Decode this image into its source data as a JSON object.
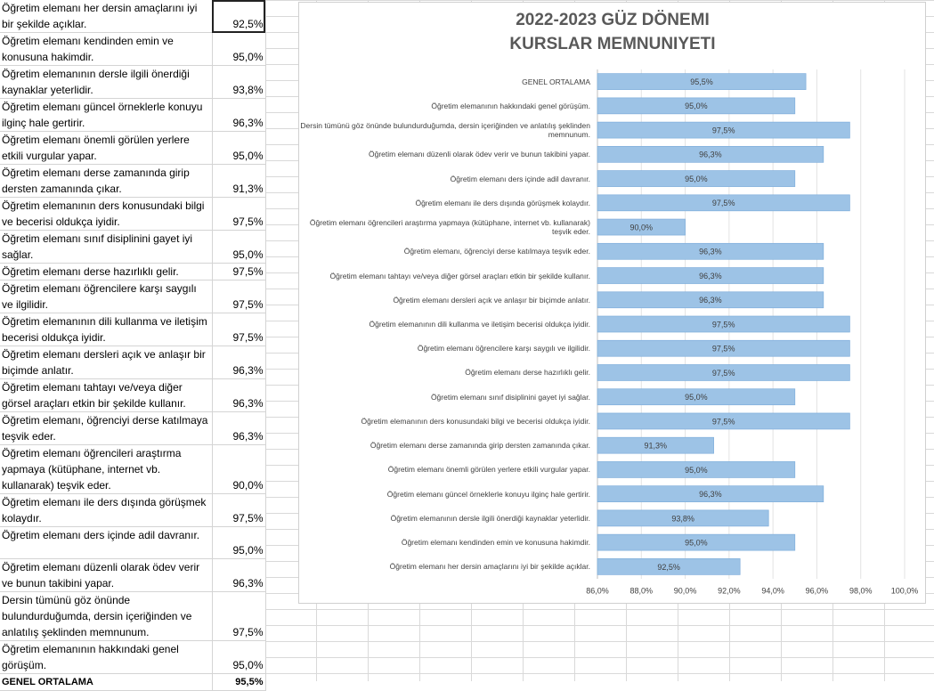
{
  "table": {
    "rows": [
      [
        "Öğretim elemanı her dersin amaçlarını iyi bir şekilde açıklar.",
        "92,5%"
      ],
      [
        "Öğretim elemanı kendinden emin ve konusuna hakimdir.",
        "95,0%"
      ],
      [
        "Öğretim elemanının dersle ilgili önerdiği kaynaklar yeterlidir.",
        "93,8%"
      ],
      [
        "Öğretim elemanı güncel örneklerle konuyu ilginç hale gertirir.",
        "96,3%"
      ],
      [
        "Öğretim elemanı önemli görülen yerlere etkili vurgular yapar.",
        "95,0%"
      ],
      [
        "Öğretim elemanı derse zamanında girip dersten zamanında çıkar.",
        "91,3%"
      ],
      [
        "Öğretim elemanının ders konusundaki bilgi ve becerisi oldukça iyidir.",
        "97,5%"
      ],
      [
        "Öğretim elemanı sınıf disiplinini gayet iyi sağlar.",
        "95,0%"
      ],
      [
        "Öğretim elemanı derse hazırlıklı gelir.",
        "97,5%"
      ],
      [
        "Öğretim elemanı öğrencilere karşı saygılı ve ilgilidir.",
        "97,5%"
      ],
      [
        "Öğretim elemanının dili kullanma ve iletişim becerisi oldukça iyidir.",
        "97,5%"
      ],
      [
        "Öğretim elemanı dersleri açık ve anlaşır bir biçimde anlatır.",
        "96,3%"
      ],
      [
        "Öğretim elemanı tahtayı ve/veya diğer görsel araçları etkin bir şekilde kullanır.",
        "96,3%"
      ],
      [
        "Öğretim elemanı, öğrenciyi derse katılmaya teşvik eder.",
        "96,3%"
      ],
      [
        "Öğretim elemanı öğrencileri araştırma yapmaya (kütüphane, internet vb. kullanarak) teşvik eder.",
        "90,0%"
      ],
      [
        "Öğretim elemanı ile ders dışında görüşmek kolaydır.",
        "97,5%"
      ],
      [
        "Öğretim elemanı ders içinde adil davranır.",
        "95,0%"
      ],
      [
        "Öğretim elemanı düzenli olarak ödev verir ve bunun takibini yapar.",
        "96,3%"
      ],
      [
        "Dersin tümünü göz önünde bulundurduğumda, dersin içeriğinden ve anlatılış şeklinden memnunum.",
        "97,5%"
      ],
      [
        "Öğretim elemanının hakkındaki genel görüşüm.",
        "95,0%"
      ],
      [
        "GENEL ORTALAMA",
        "95,5%"
      ]
    ]
  },
  "chart_data": {
    "type": "hbar",
    "title": [
      "2022-2023 GÜZ DÖNEMI",
      "KURSLAR MEMNUNIYETI"
    ],
    "categories": [
      "GENEL ORTALAMA",
      "Öğretim elemanının hakkındaki genel görüşüm.",
      "Dersin tümünü göz önünde bulundurduğumda, dersin içeriğinden ve anlatılış şeklinden memnunum.",
      "Öğretim elemanı düzenli olarak ödev verir ve bunun takibini yapar.",
      "Öğretim elemanı ders içinde adil davranır.",
      "Öğretim elemanı ile ders dışında görüşmek kolaydır.",
      "Öğretim elemanı öğrencileri araştırma yapmaya (kütüphane, internet vb. kullanarak) teşvik eder.",
      "Öğretim elemanı, öğrenciyi derse katılmaya teşvik eder.",
      "Öğretim elemanı tahtayı ve/veya diğer görsel araçları etkin bir şekilde kullanır.",
      "Öğretim elemanı dersleri açık ve anlaşır bir biçimde anlatır.",
      "Öğretim elemanının dili kullanma ve iletişim becerisi oldukça iyidir.",
      "Öğretim elemanı öğrencilere karşı saygılı ve ilgilidir.",
      "Öğretim elemanı derse hazırlıklı gelir.",
      "Öğretim elemanı sınıf disiplinini gayet iyi sağlar.",
      "Öğretim elemanının ders konusundaki bilgi ve becerisi oldukça iyidir.",
      "Öğretim elemanı derse zamanında girip dersten zamanında çıkar.",
      "Öğretim elemanı önemli görülen yerlere etkili vurgular yapar.",
      "Öğretim elemanı güncel örneklerle konuyu ilginç hale gertirir.",
      "Öğretim elemanının dersle ilgili önerdiği kaynaklar yeterlidir.",
      "Öğretim elemanı kendinden emin ve konusuna hakimdir.",
      "Öğretim elemanı her dersin amaçlarını iyi bir şekilde açıklar."
    ],
    "values": [
      95.5,
      95.0,
      97.5,
      96.3,
      95.0,
      97.5,
      90.0,
      96.3,
      96.3,
      96.3,
      97.5,
      97.5,
      97.5,
      95.0,
      97.5,
      91.3,
      95.0,
      96.3,
      93.8,
      95.0,
      92.5
    ],
    "value_labels": [
      "95,5%",
      "95,0%",
      "97,5%",
      "96,3%",
      "95,0%",
      "97,5%",
      "90,0%",
      "96,3%",
      "96,3%",
      "96,3%",
      "97,5%",
      "97,5%",
      "97,5%",
      "95,0%",
      "97,5%",
      "91,3%",
      "95,0%",
      "96,3%",
      "93,8%",
      "95,0%",
      "92,5%"
    ],
    "color": "#9dc3e6",
    "xlim": [
      86,
      100
    ],
    "xticks": [
      {
        "value": 86,
        "label": "86,0%"
      },
      {
        "value": 88,
        "label": "88,0%"
      },
      {
        "value": 90,
        "label": "90,0%"
      },
      {
        "value": 92,
        "label": "92,0%"
      },
      {
        "value": 94,
        "label": "94,0%"
      },
      {
        "value": 96,
        "label": "96,0%"
      },
      {
        "value": 98,
        "label": "98,0%"
      },
      {
        "value": 100,
        "label": "100,0%"
      }
    ],
    "grid": true
  }
}
